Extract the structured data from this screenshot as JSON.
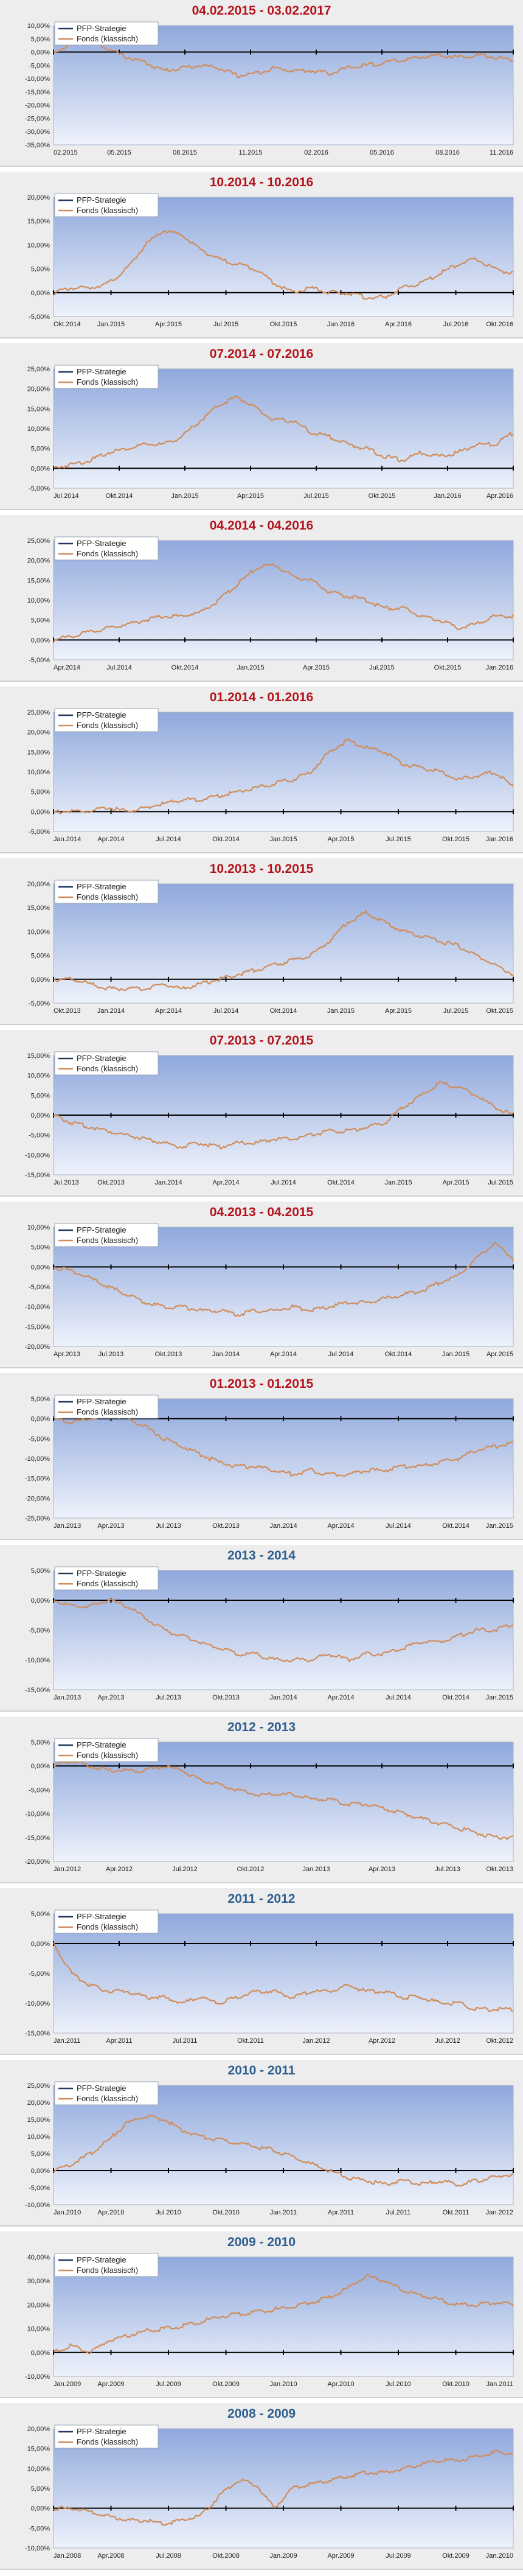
{
  "palette": {
    "strategy": "#23395d",
    "fonds": "#d08d5b",
    "title_red": "#b5121b",
    "title_blue": "#2f5f8f",
    "plot_top": "#8fa8dc",
    "plot_bottom": "#eef2fb"
  },
  "chart_data": [
    {
      "type": "line",
      "title": "04.02.2015 - 03.02.2017",
      "title_color": "red",
      "legend": [
        "PFP-Strategie",
        "Fonds (klassisch)"
      ],
      "y_ticks": [
        "10,00%",
        "5,00%",
        "0,00%",
        "-5,00%",
        "-10,00%",
        "-15,00%",
        "-20,00%",
        "-25,00%",
        "-30,00%",
        "-35,00%"
      ],
      "ylim": [
        -35,
        10
      ],
      "x_ticks": [
        "02.2015",
        "05.2015",
        "08.2015",
        "11.2015",
        "02.2016",
        "05.2016",
        "08.2016",
        "11.2016"
      ],
      "series": [
        {
          "name": "Fonds (klassisch)",
          "values": [
            0,
            3,
            5,
            1,
            -2,
            -4,
            -7,
            -6,
            -5,
            -6,
            -9,
            -8,
            -6,
            -7,
            -7,
            -8,
            -6,
            -5,
            -4,
            -3,
            -2,
            -1,
            -2,
            -1,
            -2,
            -3
          ]
        }
      ]
    },
    {
      "type": "line",
      "title": "10.2014 - 10.2016",
      "title_color": "red",
      "legend": [
        "PFP-Strategie",
        "Fonds (klassisch)"
      ],
      "y_ticks": [
        "20,00%",
        "15,00%",
        "10,00%",
        "5,00%",
        "0,00%",
        "-5,00%"
      ],
      "ylim": [
        -5,
        20
      ],
      "x_ticks": [
        "Okt.2014",
        "Jan.2015",
        "Apr.2015",
        "Jul.2015",
        "Okt.2015",
        "Jan.2016",
        "Apr.2016",
        "Jul.2016",
        "Okt.2016"
      ],
      "series": [
        {
          "name": "Fonds (klassisch)",
          "values": [
            0,
            1,
            1,
            2,
            5,
            10,
            13,
            12,
            9,
            7,
            6,
            5,
            2,
            0,
            1,
            0,
            0,
            -1,
            -1,
            1,
            2,
            4,
            6,
            7,
            5,
            4
          ]
        }
      ]
    },
    {
      "type": "line",
      "title": "07.2014 - 07.2016",
      "title_color": "red",
      "legend": [
        "PFP-Strategie",
        "Fonds (klassisch)"
      ],
      "y_ticks": [
        "25,00%",
        "20,00%",
        "15,00%",
        "10,00%",
        "5,00%",
        "0,00%",
        "-5,00%"
      ],
      "ylim": [
        -5,
        25
      ],
      "x_ticks": [
        "Jul.2014",
        "Okt.2014",
        "Jan.2015",
        "Apr.2015",
        "Jul.2015",
        "Okt.2015",
        "Jan.2016",
        "Apr.2016"
      ],
      "series": [
        {
          "name": "Fonds (klassisch)",
          "values": [
            0,
            1,
            2,
            4,
            5,
            6,
            6,
            8,
            12,
            16,
            18,
            15,
            12,
            12,
            9,
            8,
            6,
            5,
            3,
            2,
            4,
            3,
            4,
            6,
            6,
            9
          ]
        }
      ]
    },
    {
      "type": "line",
      "title": "04.2014 - 04.2016",
      "title_color": "red",
      "legend": [
        "PFP-Strategie",
        "Fonds (klassisch)"
      ],
      "y_ticks": [
        "25,00%",
        "20,00%",
        "15,00%",
        "10,00%",
        "5,00%",
        "0,00%",
        "-5,00%"
      ],
      "ylim": [
        -5,
        25
      ],
      "x_ticks": [
        "Apr.2014",
        "Jul.2014",
        "Okt.2014",
        "Jan.2015",
        "Apr.2015",
        "Jul.2015",
        "Okt.2015",
        "Jan.2016"
      ],
      "series": [
        {
          "name": "Fonds (klassisch)",
          "values": [
            0,
            1,
            2,
            3,
            4,
            5,
            6,
            6,
            7,
            10,
            14,
            18,
            19,
            16,
            15,
            12,
            11,
            10,
            8,
            8,
            6,
            5,
            3,
            4,
            6,
            6
          ]
        }
      ]
    },
    {
      "type": "line",
      "title": "01.2014 - 01.2016",
      "title_color": "red",
      "legend": [
        "PFP-Strategie",
        "Fonds (klassisch)"
      ],
      "y_ticks": [
        "25,00%",
        "20,00%",
        "15,00%",
        "10,00%",
        "5,00%",
        "0,00%",
        "-5,00%"
      ],
      "ylim": [
        -5,
        25
      ],
      "x_ticks": [
        "Jan.2014",
        "Apr.2014",
        "Jul.2014",
        "Okt.2014",
        "Jan.2015",
        "Apr.2015",
        "Jul.2015",
        "Okt.2015",
        "Jan.2016"
      ],
      "series": [
        {
          "name": "Fonds (klassisch)",
          "values": [
            0,
            0,
            0,
            1,
            0,
            1,
            2,
            3,
            3,
            4,
            5,
            6,
            7,
            8,
            10,
            15,
            18,
            16,
            15,
            12,
            11,
            10,
            8,
            9,
            10,
            6
          ]
        }
      ]
    },
    {
      "type": "line",
      "title": "10.2013 - 10.2015",
      "title_color": "red",
      "legend": [
        "PFP-Strategie",
        "Fonds (klassisch)"
      ],
      "y_ticks": [
        "20,00%",
        "15,00%",
        "10,00%",
        "5,00%",
        "0,00%",
        "-5,00%"
      ],
      "ylim": [
        -5,
        20
      ],
      "x_ticks": [
        "Okt.2013",
        "Jan.2014",
        "Apr.2014",
        "Jul.2014",
        "Okt.2014",
        "Jan.2015",
        "Apr.2015",
        "Jul.2015",
        "Okt.2015"
      ],
      "series": [
        {
          "name": "Fonds (klassisch)",
          "values": [
            0,
            0,
            -1,
            -2,
            -2,
            -2,
            -1,
            -2,
            -1,
            0,
            1,
            2,
            3,
            4,
            5,
            8,
            12,
            14,
            12,
            10,
            9,
            8,
            7,
            5,
            3,
            1
          ]
        }
      ]
    },
    {
      "type": "line",
      "title": "07.2013 - 07.2015",
      "title_color": "red",
      "legend": [
        "PFP-Strategie",
        "Fonds (klassisch)"
      ],
      "y_ticks": [
        "15,00%",
        "10,00%",
        "5,00%",
        "0,00%",
        "-5,00%",
        "-10,00%",
        "-15,00%"
      ],
      "ylim": [
        -15,
        15
      ],
      "x_ticks": [
        "Jul.2013",
        "Okt.2013",
        "Jan.2014",
        "Apr.2014",
        "Jul.2014",
        "Okt.2014",
        "Jan.2015",
        "Apr.2015",
        "Jul.2015"
      ],
      "series": [
        {
          "name": "Fonds (klassisch)",
          "values": [
            0,
            -2,
            -3,
            -4,
            -5,
            -6,
            -7,
            -8,
            -7,
            -8,
            -7,
            -7,
            -6,
            -6,
            -5,
            -4,
            -4,
            -3,
            -2,
            2,
            5,
            8,
            7,
            5,
            2,
            0
          ]
        }
      ]
    },
    {
      "type": "line",
      "title": "04.2013 - 04.2015",
      "title_color": "red",
      "legend": [
        "PFP-Strategie",
        "Fonds (klassisch)"
      ],
      "y_ticks": [
        "10,00%",
        "5,00%",
        "0,00%",
        "-5,00%",
        "-10,00%",
        "-15,00%",
        "-20,00%"
      ],
      "ylim": [
        -20,
        10
      ],
      "x_ticks": [
        "Apr.2013",
        "Jul.2013",
        "Okt.2013",
        "Jan.2014",
        "Apr.2014",
        "Jul.2014",
        "Okt.2014",
        "Jan.2015",
        "Apr.2015"
      ],
      "series": [
        {
          "name": "Fonds (klassisch)",
          "values": [
            0,
            -1,
            -3,
            -5,
            -7,
            -9,
            -10,
            -10,
            -11,
            -11,
            -12,
            -11,
            -11,
            -10,
            -11,
            -10,
            -9,
            -9,
            -8,
            -7,
            -6,
            -4,
            -2,
            2,
            6,
            2
          ]
        }
      ]
    },
    {
      "type": "line",
      "title": "01.2013 - 01.2015",
      "title_color": "red",
      "legend": [
        "PFP-Strategie",
        "Fonds (klassisch)"
      ],
      "y_ticks": [
        "5,00%",
        "0,00%",
        "-5,00%",
        "-10,00%",
        "-15,00%",
        "-20,00%",
        "-25,00%"
      ],
      "ylim": [
        -25,
        5
      ],
      "x_ticks": [
        "Jan.2013",
        "Apr.2013",
        "Jul.2013",
        "Okt.2013",
        "Jan.2014",
        "Apr.2014",
        "Jul.2014",
        "Okt.2014",
        "Jan.2015"
      ],
      "series": [
        {
          "name": "Fonds (klassisch)",
          "values": [
            0,
            -1,
            0,
            1,
            0,
            -2,
            -5,
            -7,
            -9,
            -11,
            -12,
            -12,
            -13,
            -14,
            -13,
            -14,
            -14,
            -13,
            -13,
            -12,
            -12,
            -11,
            -10,
            -8,
            -7,
            -6
          ]
        }
      ]
    },
    {
      "type": "line",
      "title": "2013 - 2014",
      "title_color": "blue",
      "legend": [
        "PFP-Strategie",
        "Fonds (klassisch)"
      ],
      "y_ticks": [
        "5,00%",
        "0,00%",
        "-5,00%",
        "-10,00%",
        "-15,00%"
      ],
      "ylim": [
        -15,
        5
      ],
      "x_ticks": [
        "Jan.2013",
        "Apr.2013",
        "Jul.2013",
        "Okt.2013",
        "Jan.2014",
        "Apr.2014",
        "Jul.2014",
        "Okt.2014",
        "Jan.2015"
      ],
      "series": [
        {
          "name": "Fonds (klassisch)",
          "values": [
            0,
            -1,
            -1,
            0,
            -1,
            -3,
            -5,
            -6,
            -7,
            -8,
            -9,
            -9,
            -10,
            -10,
            -10,
            -9,
            -10,
            -9,
            -9,
            -8,
            -7,
            -7,
            -6,
            -5,
            -5,
            -4
          ]
        }
      ]
    },
    {
      "type": "line",
      "title": "2012 - 2013",
      "title_color": "blue",
      "legend": [
        "PFP-Strategie",
        "Fonds (klassisch)"
      ],
      "y_ticks": [
        "5,00%",
        "0,00%",
        "-5,00%",
        "-10,00%",
        "-15,00%",
        "-20,00%"
      ],
      "ylim": [
        -20,
        5
      ],
      "x_ticks": [
        "Jan.2012",
        "Apr.2012",
        "Jul.2012",
        "Okt.2012",
        "Jan.2013",
        "Apr.2013",
        "Jul.2013",
        "Okt.2013"
      ],
      "series": [
        {
          "name": "Fonds (klassisch)",
          "values": [
            0,
            1,
            0,
            -1,
            -1,
            -1,
            0,
            -1,
            -3,
            -4,
            -5,
            -6,
            -6,
            -6,
            -7,
            -7,
            -8,
            -8,
            -9,
            -10,
            -11,
            -12,
            -13,
            -14,
            -15,
            -15
          ]
        }
      ]
    },
    {
      "type": "line",
      "title": "2011 - 2012",
      "title_color": "blue",
      "legend": [
        "PFP-Strategie",
        "Fonds (klassisch)"
      ],
      "y_ticks": [
        "5,00%",
        "0,00%",
        "-5,00%",
        "-10,00%",
        "-15,00%"
      ],
      "ylim": [
        -15,
        5
      ],
      "x_ticks": [
        "Jan.2011",
        "Apr.2011",
        "Jul.2011",
        "Okt.2011",
        "Jan.2012",
        "Apr.2012",
        "Jul.2012",
        "Okt.2012"
      ],
      "series": [
        {
          "name": "Fonds (klassisch)",
          "values": [
            0,
            -5,
            -7,
            -8,
            -8,
            -9,
            -9,
            -10,
            -9,
            -10,
            -9,
            -8,
            -8,
            -9,
            -8,
            -8,
            -7,
            -8,
            -8,
            -9,
            -9,
            -10,
            -10,
            -11,
            -11,
            -11
          ]
        }
      ]
    },
    {
      "type": "line",
      "title": "2010 - 2011",
      "title_color": "blue",
      "legend": [
        "PFP-Strategie",
        "Fonds (klassisch)"
      ],
      "y_ticks": [
        "25,00%",
        "20,00%",
        "15,00%",
        "10,00%",
        "5,00%",
        "0,00%",
        "-5,00%",
        "-10,00%"
      ],
      "ylim": [
        -10,
        25
      ],
      "x_ticks": [
        "Jan.2010",
        "Apr.2010",
        "Jul.2010",
        "Okt.2010",
        "Jan.2011",
        "Apr.2011",
        "Jul.2011",
        "Okt.2011",
        "Jan.2012"
      ],
      "series": [
        {
          "name": "Fonds (klassisch)",
          "values": [
            0,
            2,
            5,
            9,
            14,
            16,
            15,
            12,
            10,
            9,
            8,
            7,
            6,
            4,
            2,
            0,
            -2,
            -3,
            -4,
            -3,
            -4,
            -3,
            -4,
            -3,
            -2,
            -1
          ]
        }
      ]
    },
    {
      "type": "line",
      "title": "2009 - 2010",
      "title_color": "blue",
      "legend": [
        "PFP-Strategie",
        "Fonds (klassisch)"
      ],
      "y_ticks": [
        "40,00%",
        "30,00%",
        "20,00%",
        "10,00%",
        "0,00%",
        "-10,00%"
      ],
      "ylim": [
        -10,
        40
      ],
      "x_ticks": [
        "Jan.2009",
        "Apr.2009",
        "Jul.2009",
        "Okt.2009",
        "Jan.2010",
        "Apr.2010",
        "Jul.2010",
        "Okt.2010",
        "Jan.2011"
      ],
      "series": [
        {
          "name": "Fonds (klassisch)",
          "values": [
            0,
            3,
            0,
            5,
            7,
            9,
            10,
            11,
            13,
            15,
            16,
            17,
            18,
            19,
            21,
            23,
            27,
            32,
            30,
            26,
            24,
            22,
            20,
            20,
            21,
            20
          ]
        }
      ]
    },
    {
      "type": "line",
      "title": "2008 - 2009",
      "title_color": "blue",
      "legend": [
        "PFP-Strategie",
        "Fonds (klassisch)"
      ],
      "y_ticks": [
        "20,00%",
        "15,00%",
        "10,00%",
        "5,00%",
        "0,00%",
        "-5,00%",
        "-10,00%"
      ],
      "ylim": [
        -10,
        20
      ],
      "x_ticks": [
        "Jan.2008",
        "Apr.2008",
        "Jul.2008",
        "Okt.2008",
        "Jan.2009",
        "Apr.2009",
        "Jul.2009",
        "Okt.2009",
        "Jan.2010"
      ],
      "series": [
        {
          "name": "Fonds (klassisch)",
          "values": [
            0,
            0,
            -1,
            -2,
            -3,
            -3,
            -4,
            -3,
            -2,
            3,
            7,
            6,
            0,
            5,
            6,
            7,
            8,
            9,
            9,
            10,
            11,
            12,
            12,
            13,
            14,
            14
          ]
        }
      ]
    }
  ]
}
